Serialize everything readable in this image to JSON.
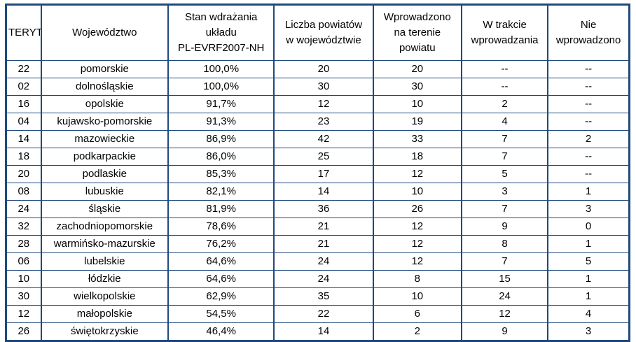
{
  "colors": {
    "border": "#1F497D",
    "text": "#000000",
    "background": "#FFFFFF"
  },
  "table": {
    "columns": [
      "TERYT",
      "Województwo",
      "Stan wdrażania\nukładu\nPL-EVRF2007-NH",
      "Liczba powiatów\nw województwie",
      "Wprowadzono\nna terenie\npowiatu",
      "W trakcie\nwprowadzania",
      "Nie\nwprowadzono"
    ],
    "rows": [
      [
        "22",
        "pomorskie",
        "100,0%",
        "20",
        "20",
        "--",
        "--"
      ],
      [
        "02",
        "dolnośląskie",
        "100,0%",
        "30",
        "30",
        "--",
        "--"
      ],
      [
        "16",
        "opolskie",
        "91,7%",
        "12",
        "10",
        "2",
        "--"
      ],
      [
        "04",
        "kujawsko-pomorskie",
        "91,3%",
        "23",
        "19",
        "4",
        "--"
      ],
      [
        "14",
        "mazowieckie",
        "86,9%",
        "42",
        "33",
        "7",
        "2"
      ],
      [
        "18",
        "podkarpackie",
        "86,0%",
        "25",
        "18",
        "7",
        "--"
      ],
      [
        "20",
        "podlaskie",
        "85,3%",
        "17",
        "12",
        "5",
        "--"
      ],
      [
        "08",
        "lubuskie",
        "82,1%",
        "14",
        "10",
        "3",
        "1"
      ],
      [
        "24",
        "śląskie",
        "81,9%",
        "36",
        "26",
        "7",
        "3"
      ],
      [
        "32",
        "zachodniopomorskie",
        "78,6%",
        "21",
        "12",
        "9",
        "0"
      ],
      [
        "28",
        "warmińsko-mazurskie",
        "76,2%",
        "21",
        "12",
        "8",
        "1"
      ],
      [
        "06",
        "lubelskie",
        "64,6%",
        "24",
        "12",
        "7",
        "5"
      ],
      [
        "10",
        "łódzkie",
        "64,6%",
        "24",
        "8",
        "15",
        "1"
      ],
      [
        "30",
        "wielkopolskie",
        "62,9%",
        "35",
        "10",
        "24",
        "1"
      ],
      [
        "12",
        "małopolskie",
        "54,5%",
        "22",
        "6",
        "12",
        "4"
      ],
      [
        "26",
        "świętokrzyskie",
        "46,4%",
        "14",
        "2",
        "9",
        "3"
      ]
    ]
  },
  "chart_data": {
    "type": "table",
    "columns": [
      "TERYT",
      "Województwo",
      "Stan wdrażania układu PL-EVRF2007-NH",
      "Liczba powiatów w województwie",
      "Wprowadzono na terenie powiatu",
      "W trakcie wprowadzania",
      "Nie wprowadzono"
    ],
    "rows": [
      [
        "22",
        "pomorskie",
        "100,0%",
        "20",
        "20",
        "--",
        "--"
      ],
      [
        "02",
        "dolnośląskie",
        "100,0%",
        "30",
        "30",
        "--",
        "--"
      ],
      [
        "16",
        "opolskie",
        "91,7%",
        "12",
        "10",
        "2",
        "--"
      ],
      [
        "04",
        "kujawsko-pomorskie",
        "91,3%",
        "23",
        "19",
        "4",
        "--"
      ],
      [
        "14",
        "mazowieckie",
        "86,9%",
        "42",
        "33",
        "7",
        "2"
      ],
      [
        "18",
        "podkarpackie",
        "86,0%",
        "25",
        "18",
        "7",
        "--"
      ],
      [
        "20",
        "podlaskie",
        "85,3%",
        "17",
        "12",
        "5",
        "--"
      ],
      [
        "08",
        "lubuskie",
        "82,1%",
        "14",
        "10",
        "3",
        "1"
      ],
      [
        "24",
        "śląskie",
        "81,9%",
        "36",
        "26",
        "7",
        "3"
      ],
      [
        "32",
        "zachodniopomorskie",
        "78,6%",
        "21",
        "12",
        "9",
        "0"
      ],
      [
        "28",
        "warmińsko-mazurskie",
        "76,2%",
        "21",
        "12",
        "8",
        "1"
      ],
      [
        "06",
        "lubelskie",
        "64,6%",
        "24",
        "12",
        "7",
        "5"
      ],
      [
        "10",
        "łódzkie",
        "64,6%",
        "24",
        "8",
        "15",
        "1"
      ],
      [
        "30",
        "wielkopolskie",
        "62,9%",
        "35",
        "10",
        "24",
        "1"
      ],
      [
        "12",
        "małopolskie",
        "54,5%",
        "22",
        "6",
        "12",
        "4"
      ],
      [
        "26",
        "świętokrzyskie",
        "46,4%",
        "14",
        "2",
        "9",
        "3"
      ]
    ]
  }
}
